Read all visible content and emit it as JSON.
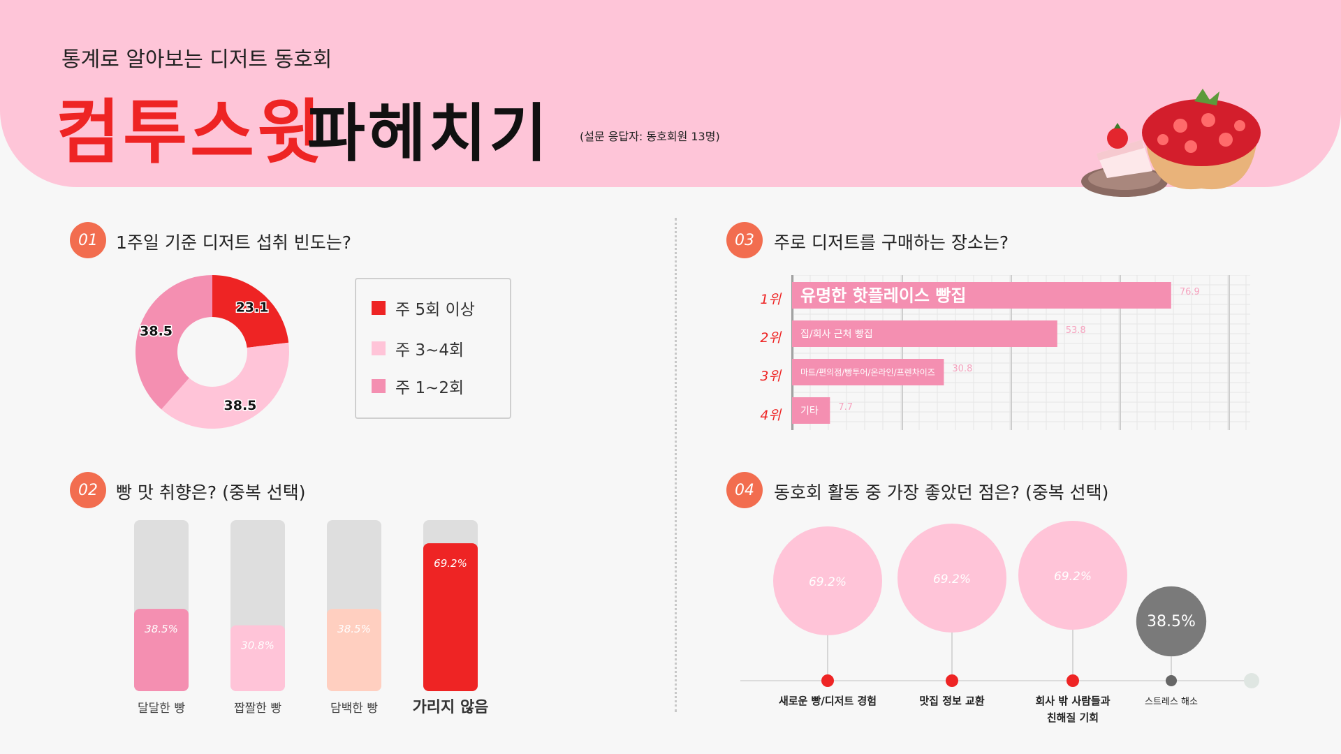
{
  "header": {
    "subtitle": "통계로 알아보는 디저트 동호회",
    "title_red": "컴투스윗",
    "title_black": "파헤치기",
    "respondents": "(설문 응답자: 동호회원 13명)"
  },
  "sections": {
    "s1": {
      "num": "01",
      "title": "1주일 기준 디저트 섭취 빈도는?"
    },
    "s2": {
      "num": "02",
      "title": "빵 맛 취향은? (중복 선택)"
    },
    "s3": {
      "num": "03",
      "title": "주로 디저트를 구매하는 장소는?"
    },
    "s4": {
      "num": "04",
      "title": "동호회 활동 중 가장 좋았던 점은? (중복 선택)"
    }
  },
  "colors": {
    "red": "#ee2424",
    "pink": "#f48fb1",
    "light_pink": "#ffc4d8",
    "peach": "#ffcfc0",
    "gray": "#dedede",
    "dark_gray": "#7a7a7a",
    "orange": "#f26d4f"
  },
  "chart_data": [
    {
      "type": "pie",
      "title": "1주일 기준 디저트 섭취 빈도는?",
      "donut": true,
      "series": [
        {
          "name": "주 5회 이상",
          "value": 23.1,
          "color": "#ee2424"
        },
        {
          "name": "주 3~4회",
          "value": 38.5,
          "color": "#ffc4d8"
        },
        {
          "name": "주 1~2회",
          "value": 38.5,
          "color": "#f48fb1"
        }
      ],
      "legend_position": "right"
    },
    {
      "type": "bar",
      "title": "빵 맛 취향은? (중복 선택)",
      "categories": [
        "달달한 빵",
        "짭짤한 빵",
        "담백한 빵",
        "가리지 않음"
      ],
      "values": [
        38.5,
        30.8,
        38.5,
        69.2
      ],
      "value_labels": [
        "38.5%",
        "30.8%",
        "38.5%",
        "69.2%"
      ],
      "colors": [
        "#f48fb1",
        "#ffc4d8",
        "#ffcfc0",
        "#ee2424"
      ],
      "ylim": [
        0,
        80
      ]
    },
    {
      "type": "bar",
      "orientation": "horizontal",
      "title": "주로 디저트를 구매하는 장소는?",
      "ranks": [
        "1위",
        "2위",
        "3위",
        "4위"
      ],
      "categories": [
        "유명한 핫플레이스 빵집",
        "집/회사 근처 빵집",
        "마트/편의점/빵투어/온라인/프렌차이즈",
        "기타"
      ],
      "values": [
        76.9,
        53.8,
        30.8,
        7.7
      ],
      "value_labels": [
        "76.9",
        "53.8",
        "30.8",
        "7.7"
      ],
      "xlim": [
        0,
        85
      ],
      "grid": true
    },
    {
      "type": "scatter",
      "title": "동호회 활동 중 가장 좋았던 점은? (중복 선택)",
      "categories": [
        "새로운 빵/디저트 경험",
        "맛집 정보 교환",
        "회사 밖 사람들과 친해질 기회",
        "스트레스 해소"
      ],
      "values": [
        69.2,
        69.2,
        69.2,
        38.5
      ],
      "value_labels": [
        "69.2%",
        "69.2%",
        "69.2%",
        "38.5%"
      ]
    }
  ]
}
